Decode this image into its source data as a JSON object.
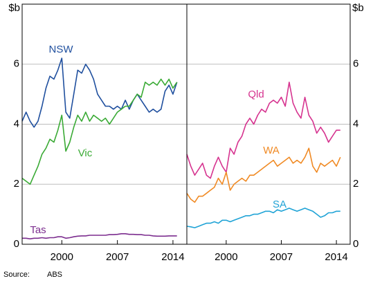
{
  "chart_data": [
    {
      "type": "line",
      "y_unit": "$b",
      "ytick_side": "left",
      "x": [
        1995,
        1995.5,
        1996,
        1996.5,
        1997,
        1997.5,
        1998,
        1998.5,
        1999,
        1999.5,
        2000,
        2000.5,
        2001,
        2001.5,
        2002,
        2002.5,
        2003,
        2003.5,
        2004,
        2004.5,
        2005,
        2005.5,
        2006,
        2006.5,
        2007,
        2007.5,
        2008,
        2008.5,
        2009,
        2009.5,
        2010,
        2010.5,
        2011,
        2011.5,
        2012,
        2012.5,
        2013,
        2013.5,
        2014,
        2014.5
      ],
      "xlim": [
        1995,
        2015.75
      ],
      "xticks": [
        2000,
        2007,
        2014
      ],
      "ylim": [
        0,
        8
      ],
      "yticks": [
        0,
        2,
        4,
        6
      ],
      "grid": true,
      "series": [
        {
          "name": "NSW",
          "color": "#1f4f9e",
          "values": [
            4.1,
            4.4,
            4.1,
            3.9,
            4.1,
            4.6,
            5.2,
            5.6,
            5.5,
            5.8,
            6.2,
            4.4,
            4.2,
            5.0,
            5.8,
            5.7,
            6.0,
            5.8,
            5.5,
            5.0,
            4.8,
            4.6,
            4.6,
            4.5,
            4.6,
            4.5,
            4.8,
            4.5,
            4.8,
            5.0,
            4.8,
            4.6,
            4.4,
            4.5,
            4.4,
            4.5,
            5.1,
            5.3,
            5.0,
            5.4
          ]
        },
        {
          "name": "Vic",
          "color": "#3aaa35",
          "values": [
            2.2,
            2.1,
            2.0,
            2.3,
            2.6,
            3.0,
            3.2,
            3.5,
            3.4,
            3.8,
            4.3,
            3.1,
            3.4,
            3.9,
            4.3,
            4.1,
            4.4,
            4.1,
            4.3,
            4.2,
            4.1,
            4.2,
            4.0,
            4.2,
            4.4,
            4.5,
            4.6,
            4.6,
            4.8,
            5.0,
            4.9,
            5.4,
            5.3,
            5.4,
            5.3,
            5.5,
            5.3,
            5.5,
            5.2,
            5.4
          ]
        },
        {
          "name": "Tas",
          "color": "#7b2c8e",
          "values": [
            0.2,
            0.2,
            0.18,
            0.2,
            0.2,
            0.22,
            0.2,
            0.22,
            0.22,
            0.25,
            0.25,
            0.2,
            0.22,
            0.25,
            0.27,
            0.28,
            0.28,
            0.3,
            0.3,
            0.3,
            0.3,
            0.3,
            0.32,
            0.32,
            0.33,
            0.35,
            0.35,
            0.33,
            0.33,
            0.32,
            0.32,
            0.3,
            0.3,
            0.28,
            0.27,
            0.27,
            0.27,
            0.28,
            0.28,
            0.28
          ]
        }
      ]
    },
    {
      "type": "line",
      "y_unit": "$b",
      "ytick_side": "right",
      "x": [
        1995,
        1995.5,
        1996,
        1996.5,
        1997,
        1997.5,
        1998,
        1998.5,
        1999,
        1999.5,
        2000,
        2000.5,
        2001,
        2001.5,
        2002,
        2002.5,
        2003,
        2003.5,
        2004,
        2004.5,
        2005,
        2005.5,
        2006,
        2006.5,
        2007,
        2007.5,
        2008,
        2008.5,
        2009,
        2009.5,
        2010,
        2010.5,
        2011,
        2011.5,
        2012,
        2012.5,
        2013,
        2013.5,
        2014,
        2014.5
      ],
      "xlim": [
        1995,
        2015.75
      ],
      "xticks": [
        2000,
        2007,
        2014
      ],
      "ylim": [
        0,
        8
      ],
      "yticks": [
        0,
        2,
        4,
        6
      ],
      "grid": true,
      "series": [
        {
          "name": "Qld",
          "color": "#d6338f",
          "values": [
            3.0,
            2.6,
            2.3,
            2.5,
            2.7,
            2.3,
            2.2,
            2.6,
            2.9,
            2.6,
            2.4,
            3.2,
            3.0,
            3.4,
            3.6,
            4.0,
            4.2,
            4.0,
            4.3,
            4.5,
            4.4,
            4.7,
            4.8,
            4.7,
            4.9,
            4.6,
            5.4,
            4.7,
            4.4,
            4.2,
            4.9,
            4.3,
            4.1,
            3.7,
            3.9,
            3.7,
            3.4,
            3.6,
            3.8,
            3.8
          ]
        },
        {
          "name": "WA",
          "color": "#f08a24",
          "values": [
            1.7,
            1.5,
            1.4,
            1.6,
            1.6,
            1.7,
            1.8,
            1.9,
            2.2,
            2.0,
            2.4,
            1.8,
            2.0,
            2.1,
            2.2,
            2.1,
            2.3,
            2.3,
            2.4,
            2.5,
            2.6,
            2.7,
            2.8,
            2.6,
            2.7,
            2.8,
            2.9,
            2.7,
            2.8,
            2.7,
            2.9,
            3.2,
            2.6,
            2.4,
            2.7,
            2.6,
            2.7,
            2.8,
            2.6,
            2.9
          ]
        },
        {
          "name": "SA",
          "color": "#1fa3d6",
          "values": [
            0.6,
            0.58,
            0.55,
            0.6,
            0.65,
            0.7,
            0.7,
            0.75,
            0.7,
            0.8,
            0.8,
            0.75,
            0.8,
            0.85,
            0.9,
            0.95,
            0.95,
            1.0,
            1.0,
            1.05,
            1.1,
            1.1,
            1.05,
            1.15,
            1.1,
            1.15,
            1.2,
            1.15,
            1.1,
            1.15,
            1.2,
            1.15,
            1.1,
            1.0,
            0.9,
            0.95,
            1.05,
            1.05,
            1.1,
            1.1
          ]
        }
      ]
    }
  ],
  "source_label": "Source:",
  "source": "ABS"
}
